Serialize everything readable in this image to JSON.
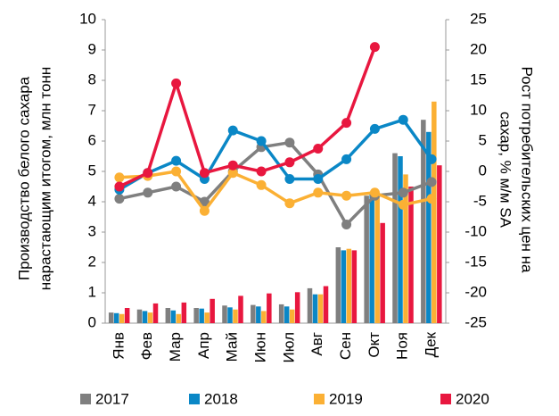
{
  "chart_data": {
    "type": "bar_line",
    "y_label": [
      "Производство белого сахара",
      "нарастающим итогом, млн тонн"
    ],
    "y2_label": [
      "Рост потребительских цен на",
      "сахар, % м/м SA"
    ],
    "categories": [
      "Янв",
      "Фев",
      "Мар",
      "Апр",
      "Май",
      "Июн",
      "Июл",
      "Авг",
      "Сен",
      "Окт",
      "Ноя",
      "Дек"
    ],
    "ylim": [
      0,
      10
    ],
    "yticks": [
      0,
      1,
      2,
      3,
      4,
      5,
      6,
      7,
      8,
      9,
      10
    ],
    "y2lim": [
      -25,
      25
    ],
    "y2ticks": [
      -25,
      -20,
      -15,
      -10,
      -5,
      0,
      5,
      10,
      15,
      20,
      25
    ],
    "series": [
      {
        "name": "2017",
        "color": "#7f7f7f",
        "values": [
          0.35,
          0.45,
          0.5,
          0.5,
          0.58,
          0.6,
          0.62,
          1.15,
          2.5,
          4.2,
          5.6,
          6.7
        ],
        "line_values": [
          -4.5,
          -3.5,
          -2.5,
          -5,
          0,
          4,
          4.75,
          -0.5,
          -8.75,
          -4,
          -3.5,
          -1.75
        ]
      },
      {
        "name": "2018",
        "color": "#0a87c6",
        "values": [
          0.33,
          0.4,
          0.42,
          0.48,
          0.52,
          0.55,
          0.55,
          0.95,
          2.4,
          4.3,
          5.5,
          6.3
        ],
        "line_values": [
          -3,
          -0.25,
          1.75,
          -1.25,
          6.75,
          5,
          -1.25,
          -1.25,
          2,
          7,
          8.5,
          2
        ]
      },
      {
        "name": "2019",
        "color": "#fbb034",
        "values": [
          0.3,
          0.35,
          0.3,
          0.35,
          0.45,
          0.4,
          0.45,
          0.95,
          2.45,
          4.3,
          4.9,
          7.3
        ],
        "line_values": [
          -1,
          -0.75,
          0,
          -6.5,
          -0.25,
          -2.25,
          -5.25,
          -3.5,
          -4,
          -3.5,
          -5.5,
          -4.5
        ]
      },
      {
        "name": "2020",
        "color": "#e8173f",
        "values": [
          0.5,
          0.65,
          0.68,
          0.8,
          0.9,
          0.98,
          1.02,
          1.22,
          2.4,
          3.3,
          4.5,
          5.2
        ],
        "line_values": [
          -2.5,
          -0.25,
          14.5,
          -0.25,
          1,
          0,
          1.5,
          3.75,
          8,
          20.5,
          null,
          null
        ]
      }
    ]
  }
}
